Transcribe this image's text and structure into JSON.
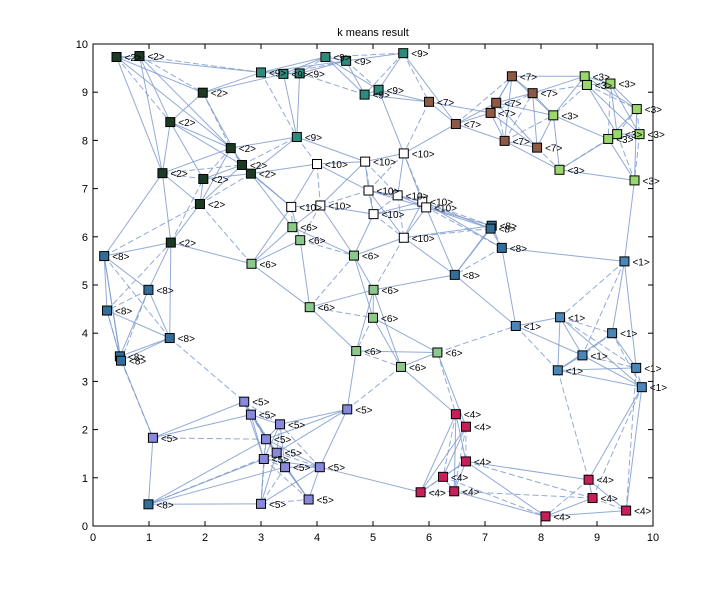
{
  "chart_data": {
    "type": "scatter",
    "title": "k means result",
    "xlim": [
      0,
      10
    ],
    "ylim": [
      0,
      10
    ],
    "xticks": [
      0,
      1,
      2,
      3,
      4,
      5,
      6,
      7,
      8,
      9,
      10
    ],
    "yticks": [
      0,
      1,
      2,
      3,
      4,
      5,
      6,
      7,
      8,
      9,
      10
    ],
    "grid": false,
    "cluster_colors": {
      "1": "#4a86b8",
      "2": "#1c3a24",
      "3": "#9ad86e",
      "4": "#c81e5a",
      "5": "#8888dc",
      "6": "#8cc88c",
      "7": "#8c5a46",
      "8": "#326e9a",
      "9": "#2e8a7c",
      "10": "#ffffff"
    },
    "points": [
      {
        "x": 0.42,
        "y": 9.73,
        "label": "<2>",
        "cluster": 2
      },
      {
        "x": 0.83,
        "y": 9.75,
        "label": "<2>",
        "cluster": 2
      },
      {
        "x": 1.96,
        "y": 8.99,
        "label": "<2>",
        "cluster": 2
      },
      {
        "x": 1.38,
        "y": 8.38,
        "label": "<2>",
        "cluster": 2
      },
      {
        "x": 2.46,
        "y": 7.84,
        "label": "<2>",
        "cluster": 2
      },
      {
        "x": 2.66,
        "y": 7.49,
        "label": "<2>",
        "cluster": 2
      },
      {
        "x": 2.82,
        "y": 7.31,
        "label": "<2>",
        "cluster": 2
      },
      {
        "x": 1.24,
        "y": 7.32,
        "label": "<2>",
        "cluster": 2
      },
      {
        "x": 1.97,
        "y": 7.2,
        "label": "<2>",
        "cluster": 2
      },
      {
        "x": 1.91,
        "y": 6.68,
        "label": "<2>",
        "cluster": 2
      },
      {
        "x": 1.39,
        "y": 5.88,
        "label": "<2>",
        "cluster": 2
      },
      {
        "x": 3.0,
        "y": 9.41,
        "label": "<9>",
        "cluster": 9
      },
      {
        "x": 3.4,
        "y": 9.38,
        "label": "<9>",
        "cluster": 9
      },
      {
        "x": 3.69,
        "y": 9.39,
        "label": "<9>",
        "cluster": 9
      },
      {
        "x": 4.15,
        "y": 9.73,
        "label": "<9>",
        "cluster": 9
      },
      {
        "x": 4.52,
        "y": 9.65,
        "label": "<9>",
        "cluster": 9
      },
      {
        "x": 5.54,
        "y": 9.81,
        "label": "<9>",
        "cluster": 9
      },
      {
        "x": 4.85,
        "y": 8.95,
        "label": "<9>",
        "cluster": 9
      },
      {
        "x": 5.1,
        "y": 9.05,
        "label": "<9>",
        "cluster": 9
      },
      {
        "x": 3.64,
        "y": 8.07,
        "label": "<9>",
        "cluster": 9
      },
      {
        "x": 6.0,
        "y": 8.8,
        "label": "<7>",
        "cluster": 7
      },
      {
        "x": 6.48,
        "y": 8.34,
        "label": "<7>",
        "cluster": 7
      },
      {
        "x": 7.2,
        "y": 8.78,
        "label": "<7>",
        "cluster": 7
      },
      {
        "x": 7.1,
        "y": 8.57,
        "label": "<7>",
        "cluster": 7
      },
      {
        "x": 7.48,
        "y": 9.33,
        "label": "<7>",
        "cluster": 7
      },
      {
        "x": 7.85,
        "y": 8.98,
        "label": "<7>",
        "cluster": 7
      },
      {
        "x": 7.35,
        "y": 7.99,
        "label": "<7>",
        "cluster": 7
      },
      {
        "x": 7.93,
        "y": 7.85,
        "label": "<7>",
        "cluster": 7
      },
      {
        "x": 8.78,
        "y": 9.33,
        "label": "<3>",
        "cluster": 3
      },
      {
        "x": 8.82,
        "y": 9.15,
        "label": "<3>",
        "cluster": 3
      },
      {
        "x": 9.24,
        "y": 9.18,
        "label": "<3>",
        "cluster": 3
      },
      {
        "x": 8.22,
        "y": 8.52,
        "label": "<3>",
        "cluster": 3
      },
      {
        "x": 9.36,
        "y": 8.13,
        "label": "<3>",
        "cluster": 3
      },
      {
        "x": 9.2,
        "y": 8.03,
        "label": "<3>",
        "cluster": 3
      },
      {
        "x": 9.71,
        "y": 8.65,
        "label": "<3>",
        "cluster": 3
      },
      {
        "x": 9.76,
        "y": 8.13,
        "label": "<3>",
        "cluster": 3
      },
      {
        "x": 8.33,
        "y": 7.39,
        "label": "<3>",
        "cluster": 3
      },
      {
        "x": 9.67,
        "y": 7.17,
        "label": "<3>",
        "cluster": 3
      },
      {
        "x": 4.0,
        "y": 7.51,
        "label": "<10>",
        "cluster": 10
      },
      {
        "x": 4.86,
        "y": 7.56,
        "label": "<10>",
        "cluster": 10
      },
      {
        "x": 5.55,
        "y": 7.73,
        "label": "<10>",
        "cluster": 10
      },
      {
        "x": 4.92,
        "y": 6.96,
        "label": "<10>",
        "cluster": 10
      },
      {
        "x": 5.44,
        "y": 6.86,
        "label": "<10>",
        "cluster": 10
      },
      {
        "x": 5.88,
        "y": 6.73,
        "label": "<10>",
        "cluster": 10
      },
      {
        "x": 5.95,
        "y": 6.61,
        "label": "<10>",
        "cluster": 10
      },
      {
        "x": 5.01,
        "y": 6.47,
        "label": "<10>",
        "cluster": 10
      },
      {
        "x": 4.06,
        "y": 6.65,
        "label": "<10>",
        "cluster": 10
      },
      {
        "x": 3.54,
        "y": 6.62,
        "label": "<10>",
        "cluster": 10
      },
      {
        "x": 5.55,
        "y": 5.98,
        "label": "<10>",
        "cluster": 10
      },
      {
        "x": 3.56,
        "y": 6.2,
        "label": "<6>",
        "cluster": 6
      },
      {
        "x": 3.7,
        "y": 5.93,
        "label": "<6>",
        "cluster": 6
      },
      {
        "x": 2.83,
        "y": 5.44,
        "label": "<6>",
        "cluster": 6
      },
      {
        "x": 4.66,
        "y": 5.61,
        "label": "<6>",
        "cluster": 6
      },
      {
        "x": 3.87,
        "y": 4.54,
        "label": "<6>",
        "cluster": 6
      },
      {
        "x": 5.01,
        "y": 4.9,
        "label": "<6>",
        "cluster": 6
      },
      {
        "x": 5.0,
        "y": 4.32,
        "label": "<6>",
        "cluster": 6
      },
      {
        "x": 4.7,
        "y": 3.63,
        "label": "<6>",
        "cluster": 6
      },
      {
        "x": 6.15,
        "y": 3.6,
        "label": "<6>",
        "cluster": 6
      },
      {
        "x": 5.5,
        "y": 3.3,
        "label": "<6>",
        "cluster": 6
      },
      {
        "x": 7.12,
        "y": 6.23,
        "label": "<8>",
        "cluster": 8
      },
      {
        "x": 7.1,
        "y": 6.17,
        "label": "<8>",
        "cluster": 8
      },
      {
        "x": 7.3,
        "y": 5.77,
        "label": "<8>",
        "cluster": 8
      },
      {
        "x": 6.46,
        "y": 5.21,
        "label": "<8>",
        "cluster": 8
      },
      {
        "x": 0.2,
        "y": 5.6,
        "label": "<8>",
        "cluster": 8
      },
      {
        "x": 0.99,
        "y": 4.9,
        "label": "<8>",
        "cluster": 8
      },
      {
        "x": 0.25,
        "y": 4.47,
        "label": "<8>",
        "cluster": 8
      },
      {
        "x": 1.37,
        "y": 3.9,
        "label": "<8>",
        "cluster": 8
      },
      {
        "x": 0.48,
        "y": 3.52,
        "label": "<8>",
        "cluster": 8
      },
      {
        "x": 0.5,
        "y": 3.43,
        "label": "<8>",
        "cluster": 8
      },
      {
        "x": 0.99,
        "y": 0.45,
        "label": "<8>",
        "cluster": 8
      },
      {
        "x": 9.49,
        "y": 5.49,
        "label": "<1>",
        "cluster": 1
      },
      {
        "x": 8.34,
        "y": 4.33,
        "label": "<1>",
        "cluster": 1
      },
      {
        "x": 7.55,
        "y": 4.15,
        "label": "<1>",
        "cluster": 1
      },
      {
        "x": 9.27,
        "y": 4.0,
        "label": "<1>",
        "cluster": 1
      },
      {
        "x": 8.74,
        "y": 3.54,
        "label": "<1>",
        "cluster": 1
      },
      {
        "x": 8.3,
        "y": 3.23,
        "label": "<1>",
        "cluster": 1
      },
      {
        "x": 9.7,
        "y": 3.28,
        "label": "<1>",
        "cluster": 1
      },
      {
        "x": 9.8,
        "y": 2.88,
        "label": "<1>",
        "cluster": 1
      },
      {
        "x": 2.7,
        "y": 2.58,
        "label": "<5>",
        "cluster": 5
      },
      {
        "x": 2.82,
        "y": 2.31,
        "label": "<5>",
        "cluster": 5
      },
      {
        "x": 4.54,
        "y": 2.42,
        "label": "<5>",
        "cluster": 5
      },
      {
        "x": 3.34,
        "y": 2.11,
        "label": "<5>",
        "cluster": 5
      },
      {
        "x": 1.07,
        "y": 1.83,
        "label": "<5>",
        "cluster": 5
      },
      {
        "x": 3.09,
        "y": 1.8,
        "label": "<5>",
        "cluster": 5
      },
      {
        "x": 3.28,
        "y": 1.52,
        "label": "<5>",
        "cluster": 5
      },
      {
        "x": 3.05,
        "y": 1.39,
        "label": "<5>",
        "cluster": 5
      },
      {
        "x": 3.43,
        "y": 1.22,
        "label": "<5>",
        "cluster": 5
      },
      {
        "x": 4.05,
        "y": 1.22,
        "label": "<5>",
        "cluster": 5
      },
      {
        "x": 3.0,
        "y": 0.46,
        "label": "<5>",
        "cluster": 5
      },
      {
        "x": 3.85,
        "y": 0.55,
        "label": "<5>",
        "cluster": 5
      },
      {
        "x": 6.48,
        "y": 2.32,
        "label": "<4>",
        "cluster": 4
      },
      {
        "x": 6.66,
        "y": 2.06,
        "label": "<4>",
        "cluster": 4
      },
      {
        "x": 6.66,
        "y": 1.34,
        "label": "<4>",
        "cluster": 4
      },
      {
        "x": 6.25,
        "y": 1.02,
        "label": "<4>",
        "cluster": 4
      },
      {
        "x": 5.85,
        "y": 0.7,
        "label": "<4>",
        "cluster": 4
      },
      {
        "x": 6.45,
        "y": 0.72,
        "label": "<4>",
        "cluster": 4
      },
      {
        "x": 8.85,
        "y": 0.96,
        "label": "<4>",
        "cluster": 4
      },
      {
        "x": 8.92,
        "y": 0.58,
        "label": "<4>",
        "cluster": 4
      },
      {
        "x": 9.52,
        "y": 0.32,
        "label": "<4>",
        "cluster": 4
      },
      {
        "x": 8.08,
        "y": 0.2,
        "label": "<4>",
        "cluster": 4
      }
    ]
  }
}
